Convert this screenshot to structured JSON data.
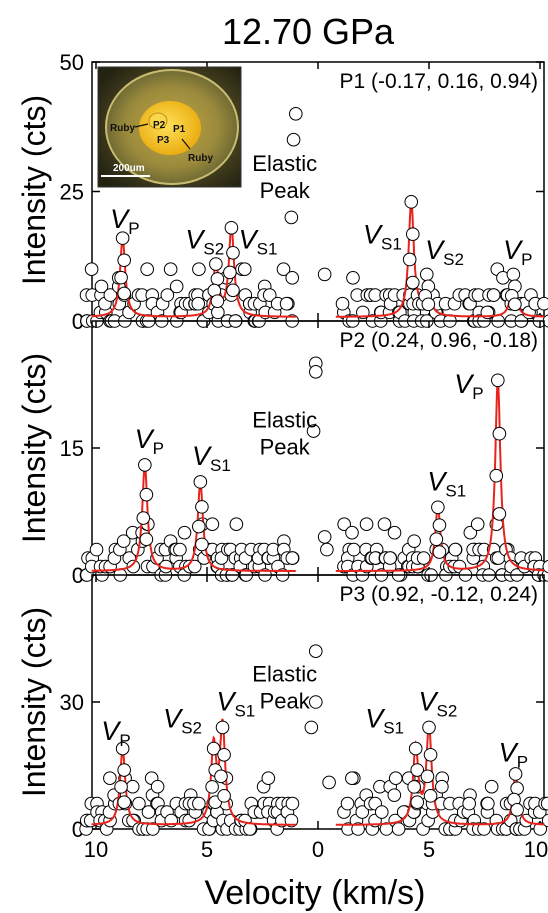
{
  "chart_data": {
    "type": "scatter",
    "title": "12.70 GPa",
    "xlabel": "Velocity (km/s)",
    "ylabel": "Intensity (cts)",
    "xticks": [
      "10",
      "5",
      "0",
      "5",
      "10"
    ],
    "elastic_label": [
      "Elastic",
      "Peak"
    ],
    "fit_color": "#e8231c",
    "inset": {
      "labels": {
        "ruby_left": "Ruby",
        "ruby_right": "Ruby",
        "p1": "P1",
        "p2": "P2",
        "p3": "P3"
      },
      "scale_bar": "200um"
    },
    "panels": [
      {
        "label": "P1 (-0.17, 0.16, 0.94)",
        "ylim": [
          0,
          50
        ],
        "yticks": [
          "0",
          "25",
          "50"
        ],
        "elastic_points": [
          {
            "x": -1.0,
            "y": 40
          },
          {
            "x": -1.1,
            "y": 35
          },
          {
            "x": -1.2,
            "y": 20
          },
          {
            "x": 0.3,
            "y": 9
          }
        ],
        "peaks": [
          {
            "name": "V",
            "sub": "P",
            "x": -8.8,
            "y": 16,
            "label_x": -8.7,
            "label_y": 18
          },
          {
            "name": "V",
            "sub": "S2",
            "x": -4.6,
            "y": 11,
            "label_x": -5.1,
            "label_y": 14
          },
          {
            "name": "V",
            "sub": "S1",
            "x": -3.9,
            "y": 18,
            "label_x": -2.7,
            "label_y": 14
          },
          {
            "name": "V",
            "sub": "S1",
            "x": 4.2,
            "y": 23,
            "label_x": 2.9,
            "label_y": 15
          },
          {
            "name": "V",
            "sub": "S2",
            "x": 4.9,
            "y": 9,
            "label_x": 5.7,
            "label_y": 12
          },
          {
            "name": "V",
            "sub": "P",
            "x": 8.8,
            "y": 9,
            "label_x": 9.0,
            "label_y": 12
          }
        ]
      },
      {
        "label": "P2 (0.24, 0.96, -0.18)",
        "ylim": [
          0,
          30
        ],
        "yticks": [
          "0",
          "15"
        ],
        "elastic_points": [
          {
            "x": -0.1,
            "y": 25
          },
          {
            "x": -0.1,
            "y": 24
          },
          {
            "x": -0.2,
            "y": 17
          },
          {
            "x": 0.3,
            "y": 4.5
          },
          {
            "x": 0.4,
            "y": 3
          }
        ],
        "peaks": [
          {
            "name": "V",
            "sub": "P",
            "x": -7.8,
            "y": 13,
            "label_x": -7.6,
            "label_y": 15
          },
          {
            "name": "V",
            "sub": "S1",
            "x": -5.3,
            "y": 11,
            "label_x": -4.8,
            "label_y": 13
          },
          {
            "name": "V",
            "sub": "S1",
            "x": 5.4,
            "y": 8,
            "label_x": 5.8,
            "label_y": 10
          },
          {
            "name": "V",
            "sub": "P",
            "x": 8.1,
            "y": 23,
            "label_x": 6.8,
            "label_y": 21.5
          }
        ]
      },
      {
        "label": "P3 (0.92, -0.12, 0.24)",
        "ylim": [
          0,
          60
        ],
        "yticks": [
          "0",
          "30"
        ],
        "elastic_points": [
          {
            "x": -0.1,
            "y": 42
          },
          {
            "x": -0.1,
            "y": 30
          },
          {
            "x": -0.3,
            "y": 24
          },
          {
            "x": 0.5,
            "y": 11
          }
        ],
        "peaks": [
          {
            "name": "V",
            "sub": "P",
            "x": -8.8,
            "y": 19,
            "label_x": -9.1,
            "label_y": 21
          },
          {
            "name": "V",
            "sub": "S2",
            "x": -4.7,
            "y": 19,
            "label_x": -6.1,
            "label_y": 24
          },
          {
            "name": "V",
            "sub": "S1",
            "x": -4.3,
            "y": 24,
            "label_x": -3.7,
            "label_y": 28
          },
          {
            "name": "V",
            "sub": "S1",
            "x": 4.4,
            "y": 19,
            "label_x": 3.0,
            "label_y": 24
          },
          {
            "name": "V",
            "sub": "S2",
            "x": 5.0,
            "y": 24,
            "label_x": 5.4,
            "label_y": 28
          },
          {
            "name": "V",
            "sub": "P",
            "x": 8.9,
            "y": 13,
            "label_x": 8.8,
            "label_y": 16
          }
        ]
      }
    ]
  }
}
